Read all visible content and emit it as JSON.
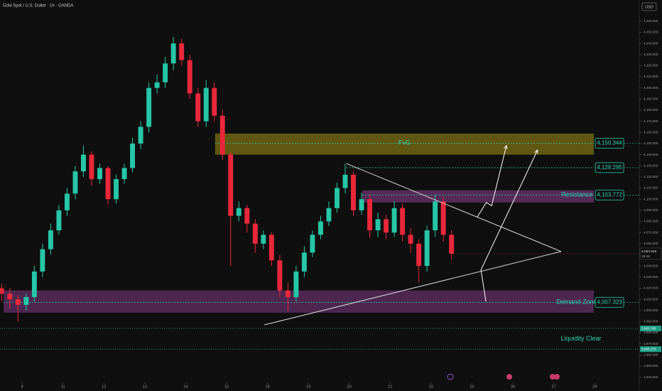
{
  "header": {
    "title": "Gold Spot / U.S. Dollar · 1h · OANDA",
    "currency": "USD"
  },
  "chart_data": {
    "type": "candlestick",
    "up_color": "#26c6a6",
    "down_color": "#e8283a",
    "x": [
      -0.5,
      -0.3,
      -0.1,
      0.1,
      0.3,
      0.5,
      0.7,
      0.9,
      1.1,
      1.3,
      1.5,
      1.7,
      1.9,
      2.1,
      2.3,
      2.5,
      2.7,
      2.9,
      3.1,
      3.3,
      3.5,
      3.7,
      3.9,
      4.1,
      4.3,
      4.5,
      4.7,
      4.9,
      5.1,
      5.3,
      5.5,
      5.7,
      5.9,
      6.1,
      6.3,
      6.5,
      6.7,
      6.9,
      7.1,
      7.3,
      7.5,
      7.7,
      7.9,
      8.1,
      8.3,
      8.5,
      8.7,
      8.9,
      9.1,
      9.3,
      9.5,
      9.7,
      9.9,
      10.1,
      10.3,
      10.5
    ],
    "open": [
      4020,
      4015,
      4010,
      4005,
      4012,
      4035,
      4055,
      4072,
      4090,
      4105,
      4125,
      4140,
      4118,
      4128,
      4100,
      4118,
      4128,
      4150,
      4165,
      4200,
      4205,
      4222,
      4240,
      4225,
      4195,
      4170,
      4200,
      4175,
      4140,
      4085,
      4092,
      4078,
      4060,
      4068,
      4045,
      4018,
      4012,
      4035,
      4052,
      4068,
      4080,
      4092,
      4110,
      4122,
      4090,
      4100,
      4072,
      4082,
      4070,
      4092,
      4068,
      4060,
      4040,
      4072,
      4098,
      4068
    ],
    "high": [
      4024,
      4020,
      4014,
      4015,
      4040,
      4060,
      4078,
      4095,
      4110,
      4130,
      4148,
      4143,
      4132,
      4130,
      4122,
      4132,
      4155,
      4170,
      4205,
      4212,
      4228,
      4246,
      4244,
      4230,
      4200,
      4207,
      4205,
      4180,
      4142,
      4098,
      4095,
      4082,
      4072,
      4070,
      4050,
      4025,
      4040,
      4058,
      4072,
      4085,
      4098,
      4115,
      4132,
      4125,
      4106,
      4104,
      4088,
      4086,
      4098,
      4096,
      4074,
      4064,
      4076,
      4104,
      4102,
      4072
    ],
    "low": [
      4008,
      4002,
      3990,
      4000,
      4008,
      4030,
      4050,
      4068,
      4085,
      4100,
      4120,
      4112,
      4114,
      4095,
      4096,
      4114,
      4124,
      4145,
      4160,
      4195,
      4200,
      4216,
      4220,
      4190,
      4165,
      4165,
      4170,
      4135,
      4040,
      4080,
      4070,
      4052,
      4055,
      4040,
      4012,
      4000,
      4008,
      4030,
      4048,
      4064,
      4076,
      4088,
      4105,
      4085,
      4086,
      4065,
      4066,
      4064,
      4066,
      4062,
      4052,
      4025,
      4035,
      4066,
      4062,
      4046
    ],
    "close": [
      4015,
      4010,
      4005,
      4012,
      4035,
      4055,
      4072,
      4090,
      4105,
      4125,
      4140,
      4118,
      4128,
      4100,
      4118,
      4128,
      4150,
      4165,
      4200,
      4205,
      4222,
      4240,
      4225,
      4195,
      4170,
      4200,
      4175,
      4140,
      4085,
      4092,
      4078,
      4060,
      4068,
      4045,
      4018,
      4012,
      4035,
      4052,
      4068,
      4080,
      4092,
      4110,
      4122,
      4090,
      4100,
      4072,
      4082,
      4070,
      4092,
      4068,
      4060,
      4040,
      4072,
      4098,
      4068,
      4051
    ],
    "xlim": [
      -0.54,
      15.09
    ],
    "ylim": [
      3934,
      4279
    ],
    "xticks": [
      {
        "value": 0,
        "label": "8"
      },
      {
        "value": 1,
        "label": "11"
      },
      {
        "value": 2,
        "label": "12"
      },
      {
        "value": 3,
        "label": "13"
      },
      {
        "value": 4,
        "label": "14"
      },
      {
        "value": 5,
        "label": "15"
      },
      {
        "value": 6,
        "label": "18"
      },
      {
        "value": 7,
        "label": "19"
      },
      {
        "value": 8,
        "label": "20"
      },
      {
        "value": 9,
        "label": "21"
      },
      {
        "value": 10,
        "label": "22"
      },
      {
        "value": 11,
        "label": "25"
      },
      {
        "value": 12,
        "label": "26"
      },
      {
        "value": 13,
        "label": "27"
      },
      {
        "value": 14,
        "label": "28"
      }
    ],
    "yticks": [
      {
        "value": 3940,
        "label": "3,940.000"
      },
      {
        "value": 3950,
        "label": "3,950.000"
      },
      {
        "value": 3960,
        "label": "3,960.000"
      },
      {
        "value": 3970,
        "label": "3,970.000"
      },
      {
        "value": 3980,
        "label": "3,980.000"
      },
      {
        "value": 3990,
        "label": "3,990.000"
      },
      {
        "value": 4000,
        "label": "4,000.000"
      },
      {
        "value": 4010,
        "label": "4,010.000"
      },
      {
        "value": 4020,
        "label": "4,020.000"
      },
      {
        "value": 4030,
        "label": "4,030.000"
      },
      {
        "value": 4040,
        "label": "4,040.000"
      },
      {
        "value": 4050,
        "label": "4,050.000"
      },
      {
        "value": 4060,
        "label": "4,060.000"
      },
      {
        "value": 4070,
        "label": "4,070.000"
      },
      {
        "value": 4080,
        "label": "4,080.000"
      },
      {
        "value": 4090,
        "label": "4,090.000"
      },
      {
        "value": 4100,
        "label": "4,100.000"
      },
      {
        "value": 4110,
        "label": "4,110.000"
      },
      {
        "value": 4120,
        "label": "4,120.000"
      },
      {
        "value": 4130,
        "label": "4,130.000"
      },
      {
        "value": 4140,
        "label": "4,140.000"
      },
      {
        "value": 4150,
        "label": "4,150.000"
      },
      {
        "value": 4160,
        "label": "4,160.000"
      },
      {
        "value": 4170,
        "label": "4,170.000"
      },
      {
        "value": 4180,
        "label": "4,180.000"
      },
      {
        "value": 4190,
        "label": "4,190.000"
      },
      {
        "value": 4200,
        "label": "4,200.000"
      },
      {
        "value": 4210,
        "label": "4,210.000"
      },
      {
        "value": 4220,
        "label": "4,220.000"
      },
      {
        "value": 4230,
        "label": "4,230.000"
      },
      {
        "value": 4240,
        "label": "4,240.000"
      },
      {
        "value": 4250,
        "label": "4,250.000"
      },
      {
        "value": 4260,
        "label": "4,260.000"
      }
    ],
    "zones": [
      {
        "label": "FvG",
        "color": "rgba(150,135,20,0.6)",
        "x": [
          4.72,
          13.98
        ],
        "y": [
          4140,
          4159
        ]
      },
      {
        "label": "Resistance",
        "color": "rgba(130,60,135,0.6)",
        "x": [
          8.32,
          13.98
        ],
        "y": [
          4097,
          4108
        ]
      },
      {
        "label": "Demand Zone",
        "color": "rgba(130,60,135,0.55)",
        "x": [
          -0.45,
          13.98
        ],
        "y": [
          3998,
          4018
        ]
      }
    ],
    "levels": [
      {
        "value": 4150.344,
        "label": "4,150.344",
        "x": [
          4.72,
          13.98
        ]
      },
      {
        "value": 4128.295,
        "label": "4,128.295",
        "x": [
          7.93,
          13.98
        ]
      },
      {
        "value": 4103.772,
        "label": "4,103.772",
        "x": [
          8.32,
          13.98
        ]
      },
      {
        "value": 4007.323,
        "label": "4,007.323",
        "x": [
          -0.45,
          13.98
        ]
      }
    ],
    "axis_tags": [
      {
        "value": 3983.79,
        "label": "3,983.795"
      },
      {
        "value": 3965.17,
        "label": "3,965.170"
      }
    ],
    "liquidity_label": "Liquidity Clear",
    "last_price": {
      "value": 4050.949,
      "label": "4,050.949",
      "countdown": "28:49"
    },
    "lines": [
      {
        "x": [
          7.93,
          13.18
        ],
        "y": [
          4132,
          4053
        ]
      },
      {
        "x": [
          5.92,
          13.18
        ],
        "y": [
          3987,
          4053
        ]
      }
    ],
    "arrows": [
      {
        "x": [
          11.13,
          11.35,
          11.48,
          11.84
        ],
        "y": [
          4084,
          4097,
          4094,
          4148
        ]
      },
      {
        "x": [
          11.34,
          11.22,
          12.6
        ],
        "y": [
          4008,
          4036.5,
          4144
        ]
      }
    ]
  }
}
